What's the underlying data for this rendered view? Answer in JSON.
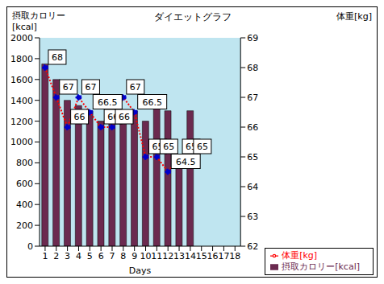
{
  "chart_data": {
    "type": "bar+line",
    "title": "ダイエットグラフ",
    "x_label": "Days",
    "y_label": "摂取カロリー [kcal]",
    "y2_label": "体重[kg]",
    "categories": [
      1,
      2,
      3,
      4,
      5,
      6,
      7,
      8,
      9,
      10,
      11,
      12,
      13,
      14,
      15,
      16,
      17,
      18
    ],
    "ylim": [
      0,
      2000
    ],
    "yticks": [
      0,
      200,
      400,
      600,
      800,
      1000,
      1200,
      1400,
      1600,
      1800,
      2000
    ],
    "y2lim": [
      62,
      69
    ],
    "y2ticks": [
      62,
      63,
      64,
      65,
      66,
      67,
      68,
      69
    ],
    "grid": false,
    "legend": "lower right",
    "series": [
      {
        "name": "摂取カロリー[kcal]",
        "type": "bar",
        "color": "#6b2a4f",
        "values": [
          1750,
          1600,
          1400,
          1350,
          1300,
          1200,
          1200,
          1300,
          1300,
          1200,
          1380,
          1300,
          850,
          1300,
          null,
          null,
          null,
          null
        ]
      },
      {
        "name": "体重[kg]",
        "type": "line",
        "axis": "y2",
        "color": "#ff0000",
        "marker": "circle",
        "line_style": "dotted",
        "data_labels": true,
        "values": [
          68,
          67,
          66,
          67,
          66.5,
          66,
          66,
          67,
          66.5,
          65,
          65,
          64.5,
          65,
          65,
          null,
          null,
          null,
          null
        ]
      }
    ]
  }
}
